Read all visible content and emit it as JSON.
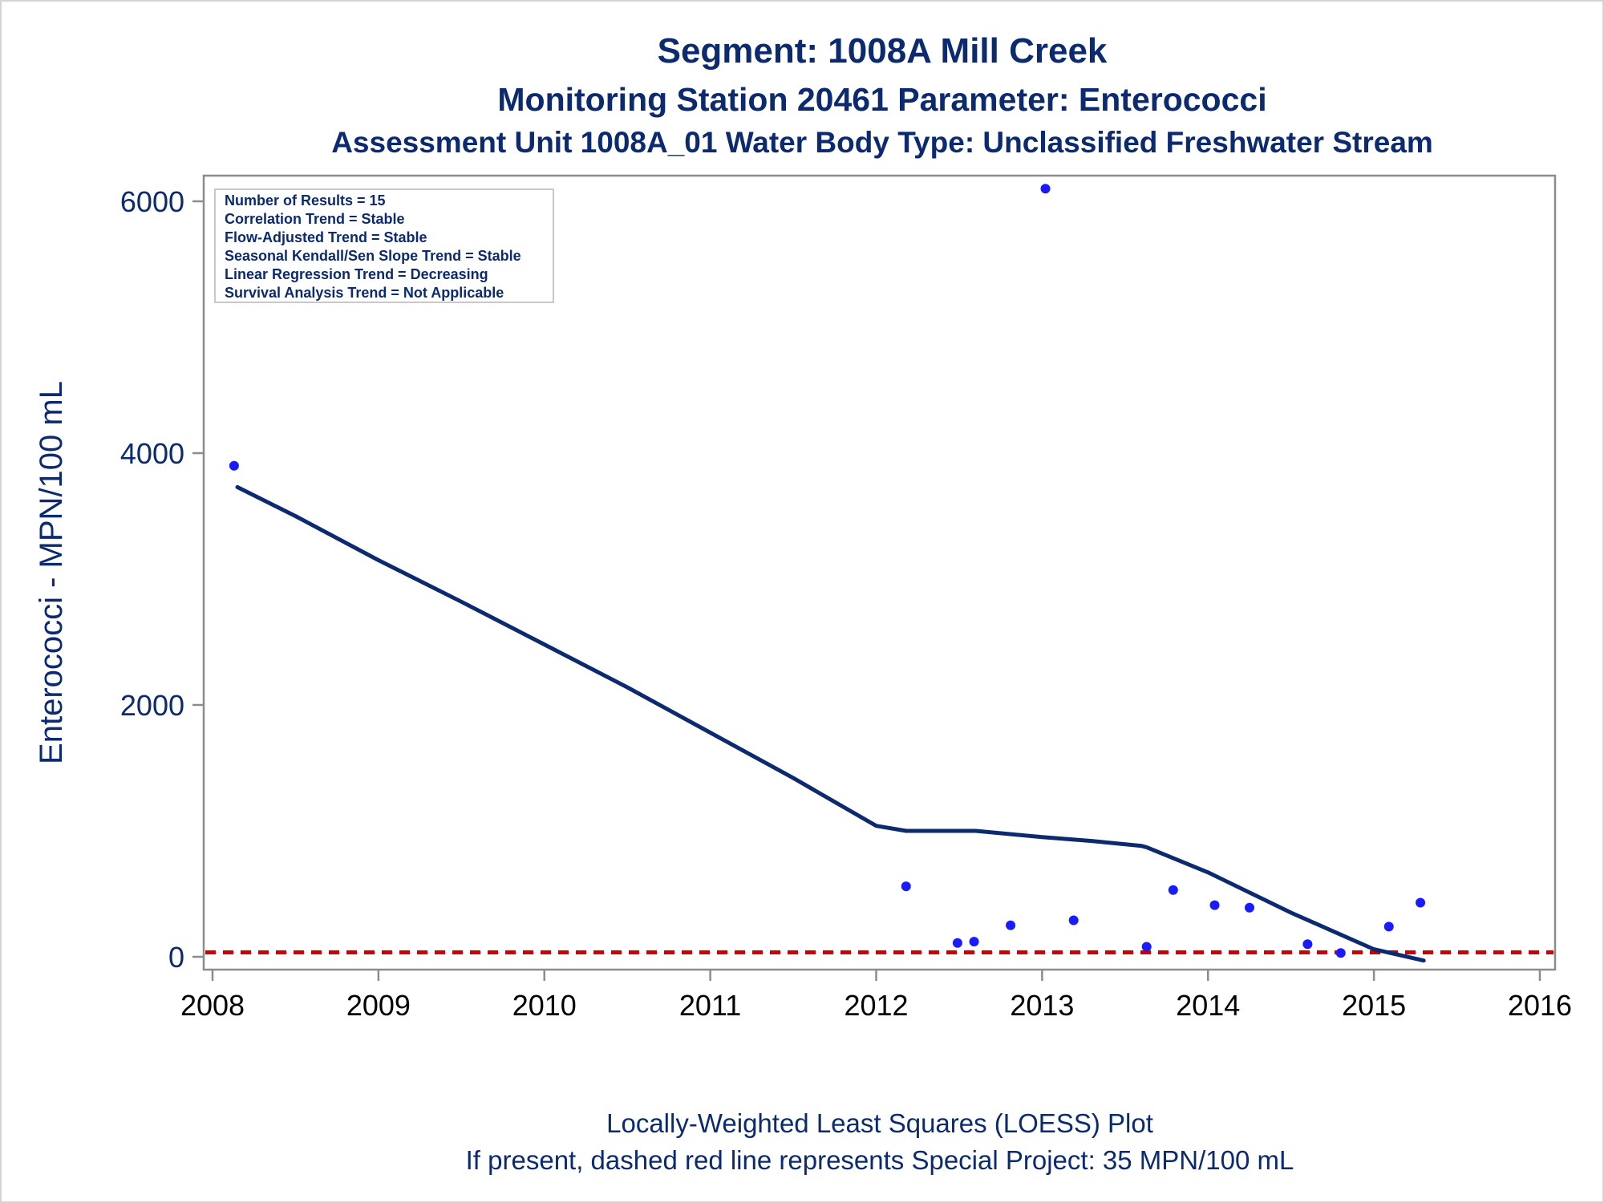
{
  "chart_data": {
    "type": "scatter",
    "titles": [
      "Segment: 1008A  Mill Creek",
      "Monitoring Station 20461 Parameter: Enterococci",
      "Assessment Unit 1008A_01   Water Body Type: Unclassified Freshwater Stream"
    ],
    "ylabel": "Enterococci - MPN/100 mL",
    "xlim": [
      2008,
      2016
    ],
    "ylim": [
      -100,
      6200
    ],
    "xticks": [
      2008,
      2009,
      2010,
      2011,
      2012,
      2013,
      2014,
      2015,
      2016
    ],
    "yticks": [
      0,
      2000,
      4000,
      6000
    ],
    "grid": false,
    "legend_box": {
      "placement": "top-left",
      "lines": [
        "Number of Results = 15",
        "Correlation Trend = Stable",
        "Flow-Adjusted Trend = Stable",
        "Seasonal Kendall/Sen Slope Trend = Stable",
        "Linear Regression Trend = Decreasing",
        "Survival Analysis Trend = Not Applicable"
      ]
    },
    "points": {
      "x": [
        2008.13,
        2012.18,
        2012.49,
        2012.59,
        2012.81,
        2013.02,
        2013.19,
        2013.63,
        2013.79,
        2014.04,
        2014.25,
        2014.6,
        2014.8,
        2015.09,
        2015.28
      ],
      "y": [
        3900,
        560,
        110,
        120,
        250,
        6100,
        290,
        80,
        530,
        410,
        390,
        100,
        30,
        240,
        430
      ],
      "color": "#1a1aff"
    },
    "loess": {
      "x": [
        2008.15,
        2008.5,
        2009.0,
        2009.5,
        2010.0,
        2010.5,
        2011.0,
        2011.5,
        2012.0,
        2012.18,
        2012.3,
        2012.6,
        2013.0,
        2013.3,
        2013.6,
        2013.63,
        2014.0,
        2014.5,
        2015.0,
        2015.3
      ],
      "y": [
        3730,
        3500,
        3150,
        2820,
        2480,
        2140,
        1780,
        1420,
        1040,
        1000,
        1000,
        1000,
        950,
        920,
        880,
        870,
        670,
        350,
        60,
        -30
      ],
      "color": "#0b2a6f"
    },
    "reference_line": {
      "y": 35,
      "color": "#cc0000",
      "style": "dashed"
    }
  },
  "footer": {
    "line1": "Locally-Weighted Least Squares (LOESS) Plot",
    "line2": "If present, dashed red line represents Special Project: 35 MPN/100 mL"
  }
}
